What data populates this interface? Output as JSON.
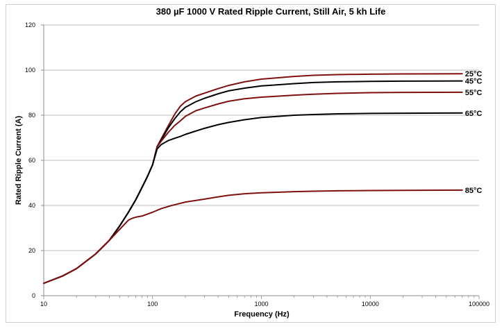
{
  "chart_data": {
    "type": "line",
    "title": "380 µF 1000 V Rated Ripple Current, Still Air, 5 kh Life",
    "xlabel": "Frequency (Hz)",
    "ylabel": "Rated Ripple Current (A)",
    "x_scale": "log",
    "xlim": [
      10,
      100000
    ],
    "ylim": [
      0,
      120
    ],
    "x_ticks": [
      "10",
      "100",
      "1000",
      "10000",
      "100000"
    ],
    "y_ticks": [
      "0",
      "20",
      "40",
      "60",
      "80",
      "100",
      "120"
    ],
    "grid": "horizontal",
    "series": [
      {
        "name": "25°C",
        "color": "#7f1010",
        "x": [
          10,
          15,
          20,
          30,
          40,
          50,
          60,
          70,
          80,
          90,
          100,
          110,
          120,
          140,
          160,
          180,
          200,
          250,
          300,
          400,
          500,
          700,
          1000,
          2000,
          3000,
          5000,
          10000,
          20000,
          70000
        ],
        "y": [
          5.5,
          8.8,
          12.0,
          18.5,
          24.5,
          31.0,
          37.0,
          42.5,
          48.0,
          53.0,
          58.0,
          66.0,
          69.5,
          75.5,
          80.5,
          84.0,
          86.0,
          88.5,
          89.8,
          91.8,
          93.2,
          94.8,
          96.0,
          97.2,
          97.7,
          98.0,
          98.2,
          98.3,
          98.4
        ]
      },
      {
        "name": "45°C",
        "color": "#000000",
        "x": [
          10,
          15,
          20,
          30,
          40,
          50,
          60,
          70,
          80,
          90,
          100,
          110,
          120,
          140,
          160,
          180,
          200,
          250,
          300,
          400,
          500,
          700,
          1000,
          2000,
          3000,
          5000,
          10000,
          20000,
          70000
        ],
        "y": [
          5.5,
          8.8,
          12.0,
          18.5,
          24.5,
          31.0,
          37.0,
          42.5,
          48.0,
          53.0,
          58.0,
          66.0,
          69.0,
          74.5,
          78.5,
          81.5,
          83.5,
          86.0,
          87.5,
          89.5,
          90.8,
          92.0,
          93.0,
          94.0,
          94.5,
          94.8,
          95.0,
          95.1,
          95.2
        ]
      },
      {
        "name": "55°C",
        "color": "#7f1010",
        "x": [
          10,
          15,
          20,
          30,
          40,
          50,
          60,
          70,
          80,
          90,
          100,
          110,
          120,
          140,
          160,
          180,
          200,
          250,
          300,
          400,
          500,
          700,
          1000,
          2000,
          3000,
          5000,
          10000,
          20000,
          70000
        ],
        "y": [
          5.5,
          8.8,
          12.0,
          18.5,
          24.5,
          31.0,
          37.0,
          42.5,
          48.0,
          53.0,
          58.0,
          66.0,
          68.5,
          72.5,
          75.5,
          77.5,
          79.5,
          82.0,
          83.2,
          85.0,
          86.2,
          87.3,
          88.0,
          88.9,
          89.3,
          89.7,
          90.0,
          90.1,
          90.2
        ]
      },
      {
        "name": "65°C",
        "color": "#000000",
        "x": [
          10,
          15,
          20,
          30,
          40,
          50,
          60,
          70,
          80,
          90,
          100,
          110,
          120,
          140,
          160,
          180,
          200,
          250,
          300,
          400,
          500,
          700,
          1000,
          2000,
          3000,
          5000,
          10000,
          20000,
          70000
        ],
        "y": [
          5.5,
          8.8,
          12.0,
          18.5,
          24.5,
          31.0,
          37.0,
          42.5,
          48.0,
          53.0,
          58.0,
          65.0,
          67.0,
          68.8,
          69.8,
          70.6,
          71.5,
          73.0,
          74.2,
          75.8,
          76.8,
          78.0,
          79.0,
          80.0,
          80.3,
          80.6,
          80.8,
          80.9,
          81.0
        ]
      },
      {
        "name": "85°C",
        "color": "#7f1010",
        "x": [
          10,
          15,
          20,
          30,
          40,
          50,
          60,
          65,
          70,
          80,
          100,
          120,
          150,
          200,
          300,
          400,
          500,
          700,
          1000,
          2000,
          3000,
          5000,
          10000,
          20000,
          70000
        ],
        "y": [
          5.5,
          8.8,
          12.0,
          18.5,
          24.5,
          29.5,
          33.5,
          34.3,
          34.8,
          35.3,
          37.0,
          38.6,
          40.0,
          41.5,
          42.8,
          43.8,
          44.5,
          45.2,
          45.6,
          46.1,
          46.3,
          46.5,
          46.6,
          46.7,
          46.8
        ]
      }
    ]
  }
}
